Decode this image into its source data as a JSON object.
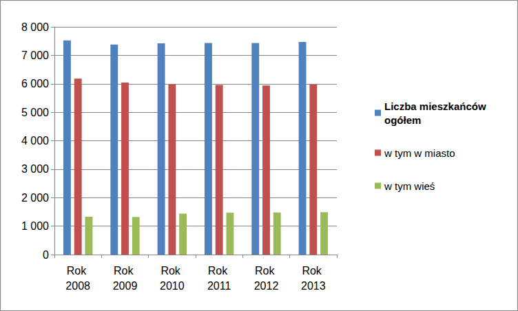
{
  "chart_data": {
    "type": "bar",
    "categories": [
      "Rok 2008",
      "Rok 2009",
      "Rok 2010",
      "Rok 2011",
      "Rok 2012",
      "Rok 2013"
    ],
    "series": [
      {
        "name": "Liczba mieszkańców ogółem",
        "color": "#4f81bd",
        "values": [
          7520,
          7380,
          7420,
          7430,
          7430,
          7470
        ]
      },
      {
        "name": "w tym w miasto",
        "color": "#c0504d",
        "values": [
          6180,
          6040,
          5980,
          5960,
          5940,
          5980
        ]
      },
      {
        "name": "w tym wieś",
        "color": "#9bbb59",
        "values": [
          1330,
          1320,
          1440,
          1470,
          1480,
          1490
        ]
      }
    ],
    "ylim": [
      0,
      8000
    ],
    "yticks": [
      0,
      {
        "value": 1000,
        "label": "1 000"
      },
      {
        "value": 2000,
        "label": "2 000"
      },
      {
        "value": 3000,
        "label": "3 000"
      },
      {
        "value": 4000,
        "label": "4 000"
      },
      {
        "value": 5000,
        "label": "5 000"
      },
      {
        "value": 6000,
        "label": "6 000"
      },
      {
        "value": 7000,
        "label": "7 000"
      },
      {
        "value": 8000,
        "label": "8 000"
      }
    ],
    "grid": true,
    "legend": "right"
  }
}
